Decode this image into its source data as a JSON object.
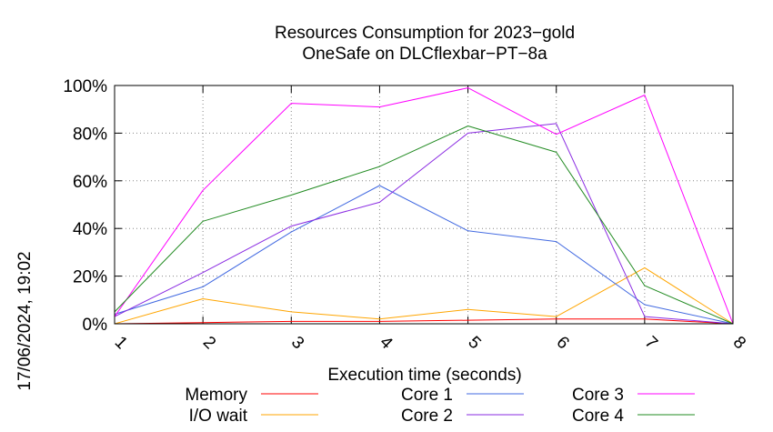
{
  "chart_data": {
    "type": "line",
    "title": [
      "Resources Consumption for 2023−gold",
      "OneSafe on DLCflexbar−PT−8a"
    ],
    "xlabel": "Execution time (seconds)",
    "ylabel": "",
    "side_label": "17/06/2024, 19:02",
    "x": [
      1,
      2,
      3,
      4,
      5,
      6,
      7,
      8
    ],
    "xlim": [
      1,
      8
    ],
    "ylim": [
      0,
      100
    ],
    "yticks": [
      "0%",
      "20%",
      "40%",
      "60%",
      "80%",
      "100%"
    ],
    "xticks": [
      "1",
      "2",
      "3",
      "4",
      "5",
      "6",
      "7",
      "8"
    ],
    "grid": true,
    "legend_position": "bottom",
    "series": [
      {
        "name": "Memory",
        "color": "#ff0000",
        "values": [
          0,
          0.5,
          1,
          1,
          1.5,
          2,
          2,
          0
        ]
      },
      {
        "name": "I/O wait",
        "color": "#ffa500",
        "values": [
          0,
          10.5,
          5,
          2,
          6,
          3,
          23.5,
          0
        ]
      },
      {
        "name": "Core 1",
        "color": "#4169e1",
        "values": [
          4,
          15.5,
          38.5,
          58,
          39,
          34.5,
          8,
          0
        ]
      },
      {
        "name": "Core 2",
        "color": "#8a2be2",
        "values": [
          3,
          21.5,
          41,
          51,
          80,
          84,
          3,
          0
        ]
      },
      {
        "name": "Core 3",
        "color": "#ff00ff",
        "values": [
          3,
          56,
          92.5,
          91,
          99,
          79.5,
          96,
          0
        ]
      },
      {
        "name": "Core 4",
        "color": "#228b22",
        "values": [
          5,
          43,
          54,
          66,
          83,
          72,
          16,
          0
        ]
      }
    ]
  }
}
